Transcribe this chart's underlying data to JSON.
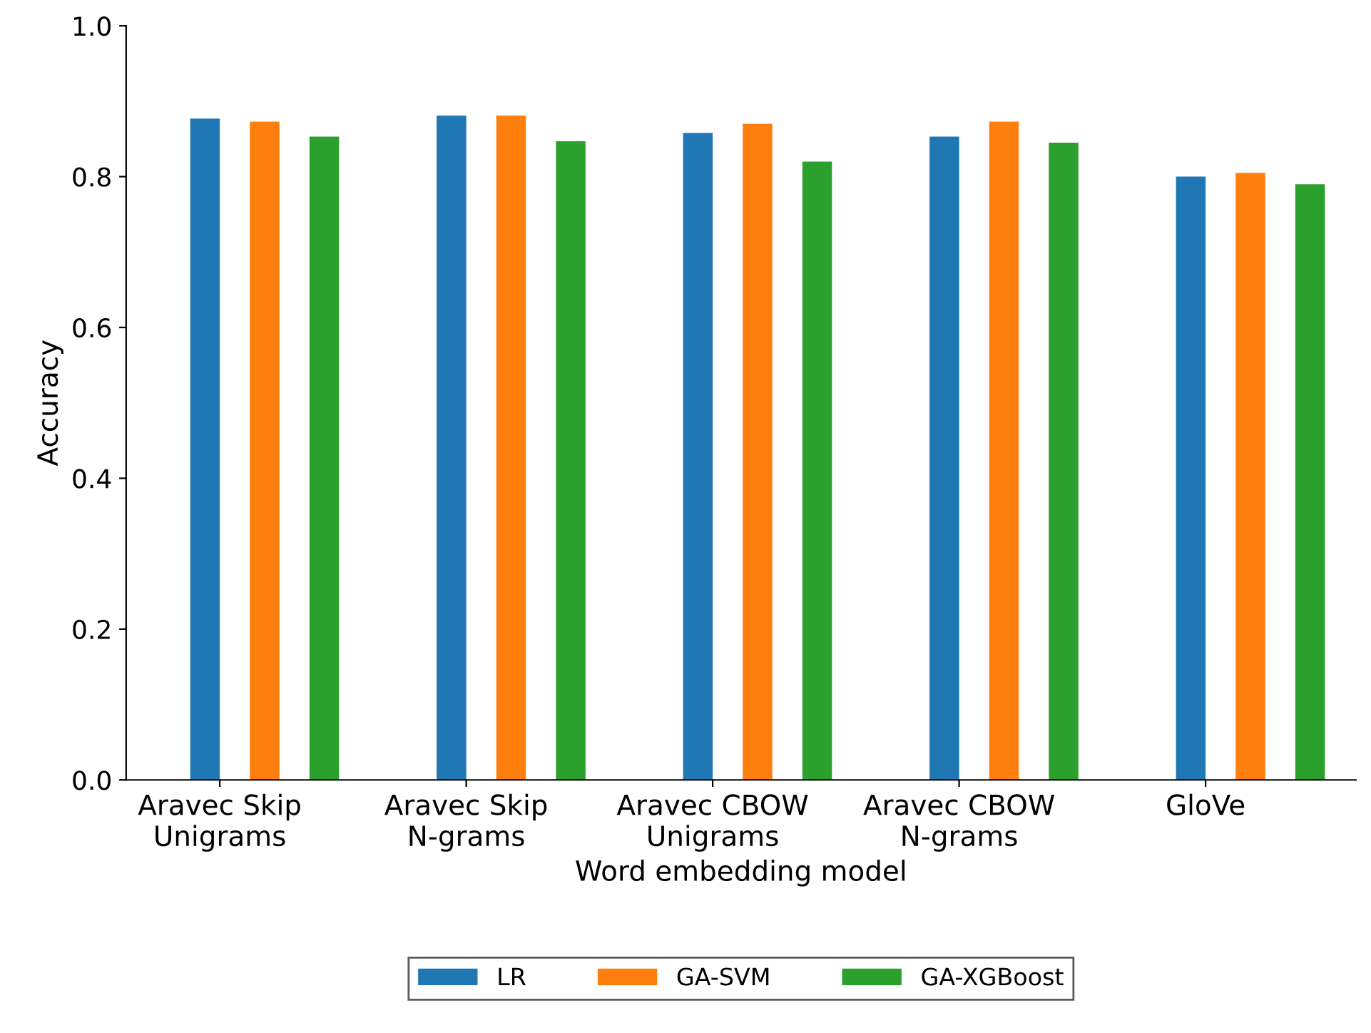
{
  "chart_data": {
    "type": "bar",
    "xlabel": "Word embedding model",
    "ylabel": "Accuracy",
    "categories": [
      "Aravec Skip\nUnigrams",
      "Aravec Skip\nN-grams",
      "Aravec CBOW\nUnigrams",
      "Aravec CBOW\nN-grams",
      "GloVe"
    ],
    "series": [
      {
        "name": "LR",
        "color": "#1f77b4",
        "values": [
          0.877,
          0.881,
          0.858,
          0.853,
          0.8
        ]
      },
      {
        "name": "GA-SVM",
        "color": "#ff7f0e",
        "values": [
          0.873,
          0.881,
          0.87,
          0.873,
          0.805
        ]
      },
      {
        "name": "GA-XGBoost",
        "color": "#2ca02c",
        "values": [
          0.853,
          0.847,
          0.82,
          0.845,
          0.79
        ]
      }
    ],
    "ylim": [
      0.0,
      1.0
    ],
    "yticks": [
      {
        "value": 0.0,
        "label": "0.0"
      },
      {
        "value": 0.2,
        "label": "0.2"
      },
      {
        "value": 0.4,
        "label": "0.4"
      },
      {
        "value": 0.6,
        "label": "0.6"
      },
      {
        "value": 0.8,
        "label": "0.8"
      },
      {
        "value": 1.0,
        "label": "1.0"
      }
    ],
    "legend": "bottom"
  }
}
